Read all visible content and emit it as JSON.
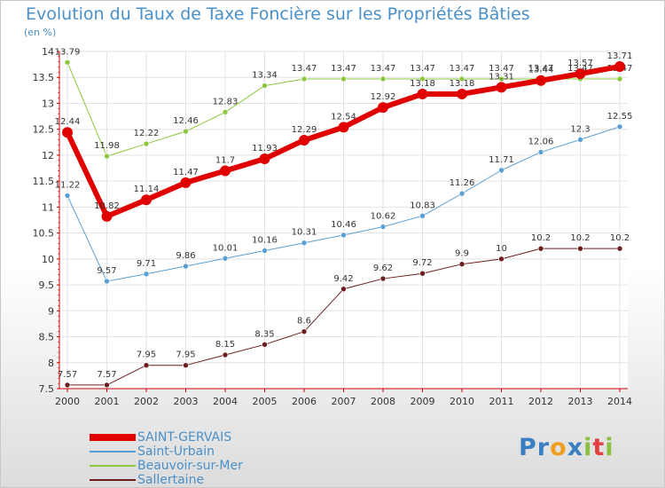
{
  "header": {
    "title": "Evolution du Taux de Taxe Foncière sur les Propriétés Bâties",
    "unit": "(en %)"
  },
  "logo": {
    "text": "Proxiti",
    "letters": [
      {
        "ch": "P",
        "color": "#3a7fc2"
      },
      {
        "ch": "r",
        "color": "#3a7fc2"
      },
      {
        "ch": "o",
        "color": "#f0a020"
      },
      {
        "ch": "x",
        "color": "#3a7fc2"
      },
      {
        "ch": "i",
        "color": "#8cc040"
      },
      {
        "ch": "t",
        "color": "#e04040"
      },
      {
        "ch": "i",
        "color": "#8cc040"
      }
    ]
  },
  "chart_data": {
    "type": "line",
    "title": "Evolution du Taux de Taxe Foncière sur les Propriétés Bâties",
    "ylabel": "(en %)",
    "xlabel": "",
    "ylim": [
      7.5,
      14
    ],
    "yticks": [
      "7.5",
      "8",
      "8.5",
      "9",
      "9.5",
      "10",
      "10.5",
      "11",
      "11.5",
      "12",
      "12.5",
      "13",
      "13.5",
      "14"
    ],
    "x": [
      "2000",
      "2001",
      "2002",
      "2003",
      "2004",
      "2005",
      "2006",
      "2007",
      "2008",
      "2009",
      "2010",
      "2011",
      "2012",
      "2013",
      "2014"
    ],
    "grid": true,
    "legend_position": "bottom-left",
    "series": [
      {
        "name": "Sallertaine",
        "color": "#6b1e1e",
        "width": 1,
        "markerR": 3,
        "values": [
          7.57,
          7.57,
          7.95,
          7.95,
          8.15,
          8.35,
          8.6,
          9.42,
          9.62,
          9.72,
          9.9,
          10,
          10.2,
          10.2,
          10.2
        ],
        "labels": [
          "7.57",
          "7.57",
          "7.95",
          "7.95",
          "8.15",
          "8.35",
          "8.6",
          "9.42",
          "9.62",
          "9.72",
          "9.9",
          "10",
          "10.2",
          "10.2",
          "10.2"
        ]
      },
      {
        "name": "Saint-Urbain",
        "color": "#5a9fd4",
        "width": 1,
        "markerR": 3,
        "values": [
          11.22,
          9.57,
          9.71,
          9.86,
          10.01,
          10.16,
          10.31,
          10.46,
          10.62,
          10.83,
          11.26,
          11.71,
          12.06,
          12.3,
          12.55
        ],
        "labels": [
          "11.22",
          "9.57",
          "9.71",
          "9.86",
          "10.01",
          "10.16",
          "10.31",
          "10.46",
          "10.62",
          "10.83",
          "11.26",
          "11.71",
          "12.06",
          "12.3",
          "12.55"
        ]
      },
      {
        "name": "Beauvoir-sur-Mer",
        "color": "#8cc83c",
        "width": 1,
        "markerR": 3,
        "values": [
          13.79,
          11.98,
          12.22,
          12.46,
          12.83,
          13.34,
          13.47,
          13.47,
          13.47,
          13.47,
          13.47,
          13.47,
          13.47,
          13.47,
          13.47
        ],
        "labels": [
          "13.79",
          "11.98",
          "12.22",
          "12.46",
          "12.83",
          "13.34",
          "13.47",
          "13.47",
          "13.47",
          "13.47",
          "13.47",
          "13.47",
          "13.47",
          "13.47",
          "13.47"
        ]
      },
      {
        "name": "SAINT-GERVAIS",
        "color": "#e00000",
        "width": 6,
        "markerR": 6,
        "values": [
          12.44,
          10.82,
          11.14,
          11.47,
          11.7,
          11.93,
          12.29,
          12.54,
          12.92,
          13.18,
          13.18,
          13.31,
          13.44,
          13.57,
          13.71
        ],
        "labels": [
          "12.44",
          "10.82",
          "11.14",
          "11.47",
          "11.7",
          "11.93",
          "12.29",
          "12.54",
          "12.92",
          "13.18",
          "13.18",
          "13.31",
          "13.44",
          "13.57",
          "13.71"
        ]
      }
    ],
    "legend": [
      {
        "name": "SAINT-GERVAIS",
        "color": "#e00000",
        "width": 8
      },
      {
        "name": "Saint-Urbain",
        "color": "#5a9fd4",
        "width": 2
      },
      {
        "name": "Beauvoir-sur-Mer",
        "color": "#8cc83c",
        "width": 2
      },
      {
        "name": "Sallertaine",
        "color": "#6b1e1e",
        "width": 2
      }
    ]
  }
}
